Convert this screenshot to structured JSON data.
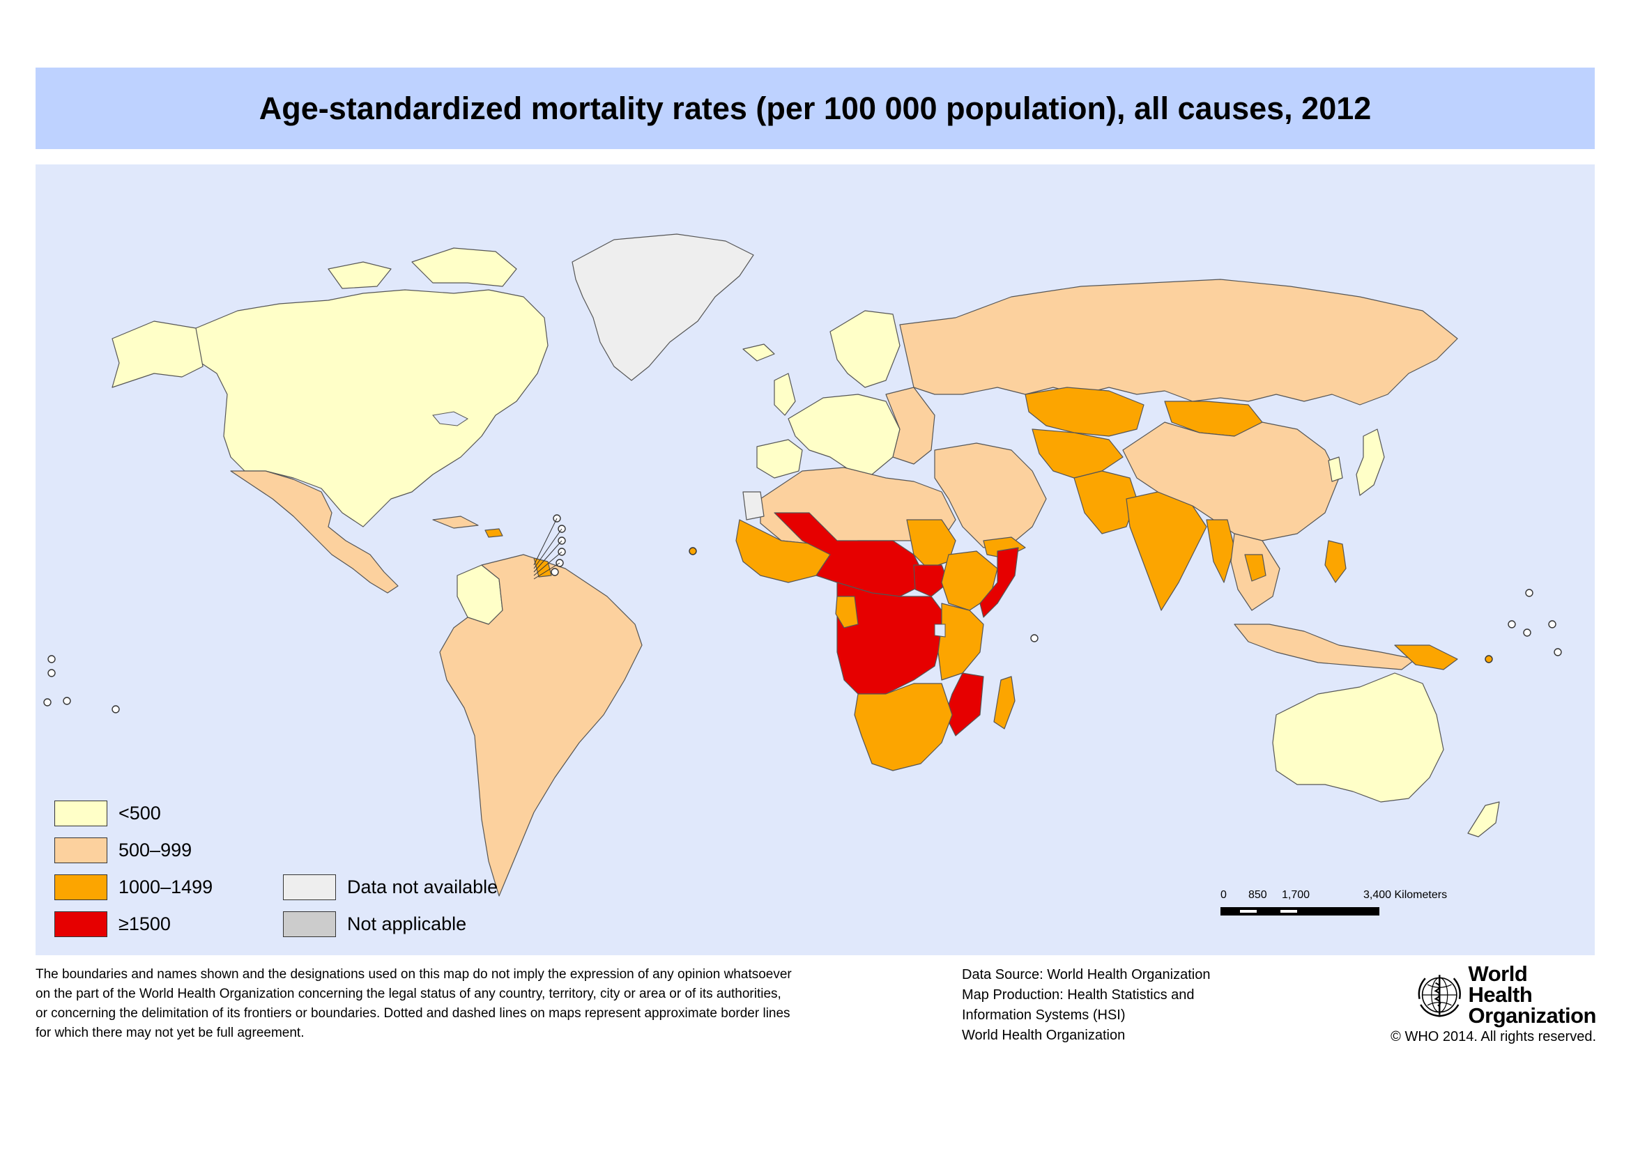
{
  "title": "Age-standardized mortality rates (per 100 000 population), all causes, 2012",
  "colors": {
    "title_bg": "#bed2ff",
    "ocean": "#e0e8fb",
    "under_500": "#ffffc8",
    "500_999": "#fcd19e",
    "1000_1499": "#fca500",
    "over_1500": "#e60000",
    "data_not_available": "#eeeeee",
    "not_applicable": "#cccccc",
    "border": "#555555"
  },
  "legend": {
    "items": [
      {
        "label": "<500",
        "color": "#ffffc8"
      },
      {
        "label": "500–999",
        "color": "#fcd19e"
      },
      {
        "label": "1000–1499",
        "color": "#fca500"
      },
      {
        "label": "≥1500",
        "color": "#e60000"
      },
      {
        "label": "Data not available",
        "color": "#eeeeee"
      },
      {
        "label": "Not applicable",
        "color": "#cccccc"
      }
    ]
  },
  "scale_bar": {
    "ticks": [
      "0",
      "850",
      "1,700",
      "3,400 Kilometers"
    ]
  },
  "disclaimer": [
    "The boundaries and names shown and the designations used on this map do not imply the expression of any opinion whatsoever",
    "on the part of the World Health Organization concerning the legal status of any country, territory, city or area or of its authorities,",
    "or concerning the delimitation of its frontiers or boundaries. Dotted and dashed lines on maps represent approximate border lines",
    "for which there may not yet be full agreement."
  ],
  "source": [
    "Data Source: World Health Organization",
    "Map Production: Health Statistics and",
    "Information Systems (HSI)",
    "World Health Organization"
  ],
  "logo": {
    "line1": "World Health",
    "line2": "Organization"
  },
  "copyright": "© WHO 2014. All rights reserved."
}
